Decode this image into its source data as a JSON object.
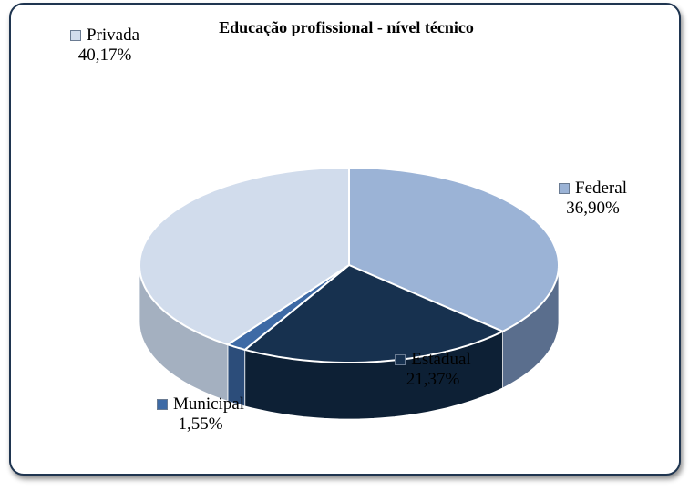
{
  "chart_data": {
    "type": "pie",
    "title": "Educação profissional  - nível técnico",
    "slices": [
      {
        "label": "Federal",
        "value": 36.9,
        "value_text": "36,90%",
        "color": "#9bb3d6",
        "side": "#5a6e8d"
      },
      {
        "label": "Estadual",
        "value": 21.37,
        "value_text": "21,37%",
        "color": "#17314f",
        "side": "#0d2035"
      },
      {
        "label": "Municipal",
        "value": 1.55,
        "value_text": "1,55%",
        "color": "#3e6aa5",
        "side": "#2c4d7a"
      },
      {
        "label": "Privada",
        "value": 40.17,
        "value_text": "40,17%",
        "color": "#d1dcec",
        "side": "#a4b0c0"
      }
    ]
  }
}
